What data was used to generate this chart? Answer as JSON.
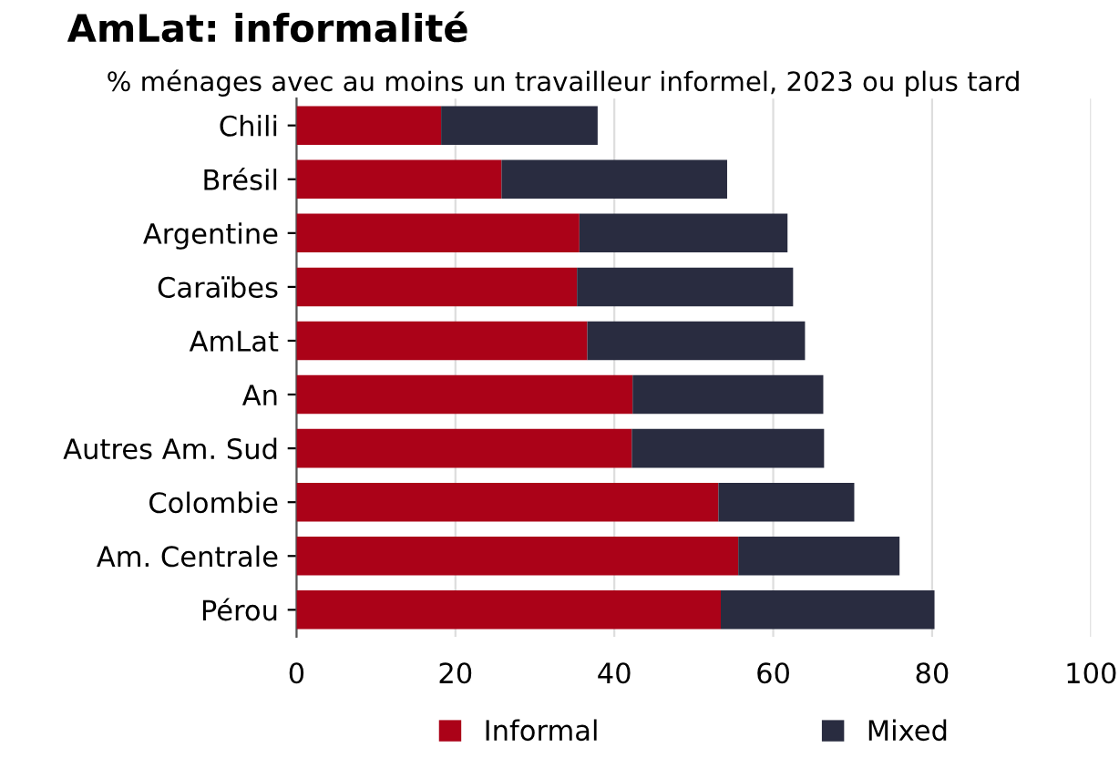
{
  "chart_data": {
    "type": "bar",
    "orientation": "horizontal",
    "stacked": true,
    "title": "AmLat: informalité",
    "subtitle": "% ménages avec au moins un travailleur informel, 2023 ou plus tard",
    "categories": [
      "Chili",
      "Brésil",
      "Argentine",
      "Caraïbes",
      "AmLat",
      "An",
      "Autres Am. Sud",
      "Colombie",
      "Am. Centrale",
      "Pérou"
    ],
    "series": [
      {
        "name": "Informal",
        "color": "#ab0218",
        "values": [
          18.2,
          25.8,
          35.6,
          35.3,
          36.6,
          42.3,
          42.2,
          53.1,
          55.6,
          53.4
        ]
      },
      {
        "name": "Mixed",
        "color": "#292c40",
        "values": [
          19.7,
          28.4,
          26.2,
          27.2,
          27.4,
          24.0,
          24.2,
          17.1,
          20.3,
          26.9
        ]
      }
    ],
    "xlim": [
      0,
      100
    ],
    "xticks": [
      0,
      20,
      40,
      60,
      80,
      100
    ],
    "grid": "x",
    "legend": "bottom"
  }
}
